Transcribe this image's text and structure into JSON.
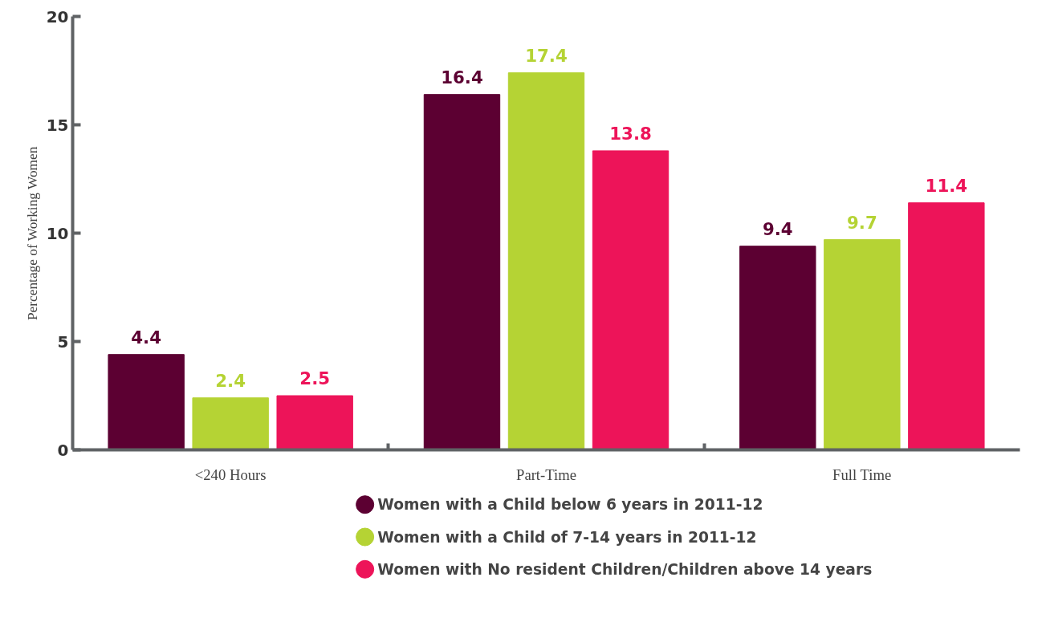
{
  "chart_data": {
    "type": "bar",
    "ylabel": "Percentage of Working Women",
    "categories": [
      "<240 Hours",
      "Part-Time",
      "Full Time"
    ],
    "series": [
      {
        "name": "Women with a Child below 6 years in 2011-12",
        "color": "#5c0032",
        "values": [
          4.4,
          16.4,
          9.4
        ]
      },
      {
        "name": "Women with a Child of 7-14 years in 2011-12",
        "color": "#b5d334",
        "values": [
          2.4,
          17.4,
          9.7
        ]
      },
      {
        "name": "Women with No resident Children/Children above 14 years",
        "color": "#ed1459",
        "values": [
          2.5,
          13.8,
          11.4
        ]
      }
    ],
    "ylim": [
      0,
      20
    ],
    "yticks": [
      0,
      5,
      10,
      15,
      20
    ],
    "data_labels": true,
    "grid": false,
    "legend": "bottom"
  }
}
